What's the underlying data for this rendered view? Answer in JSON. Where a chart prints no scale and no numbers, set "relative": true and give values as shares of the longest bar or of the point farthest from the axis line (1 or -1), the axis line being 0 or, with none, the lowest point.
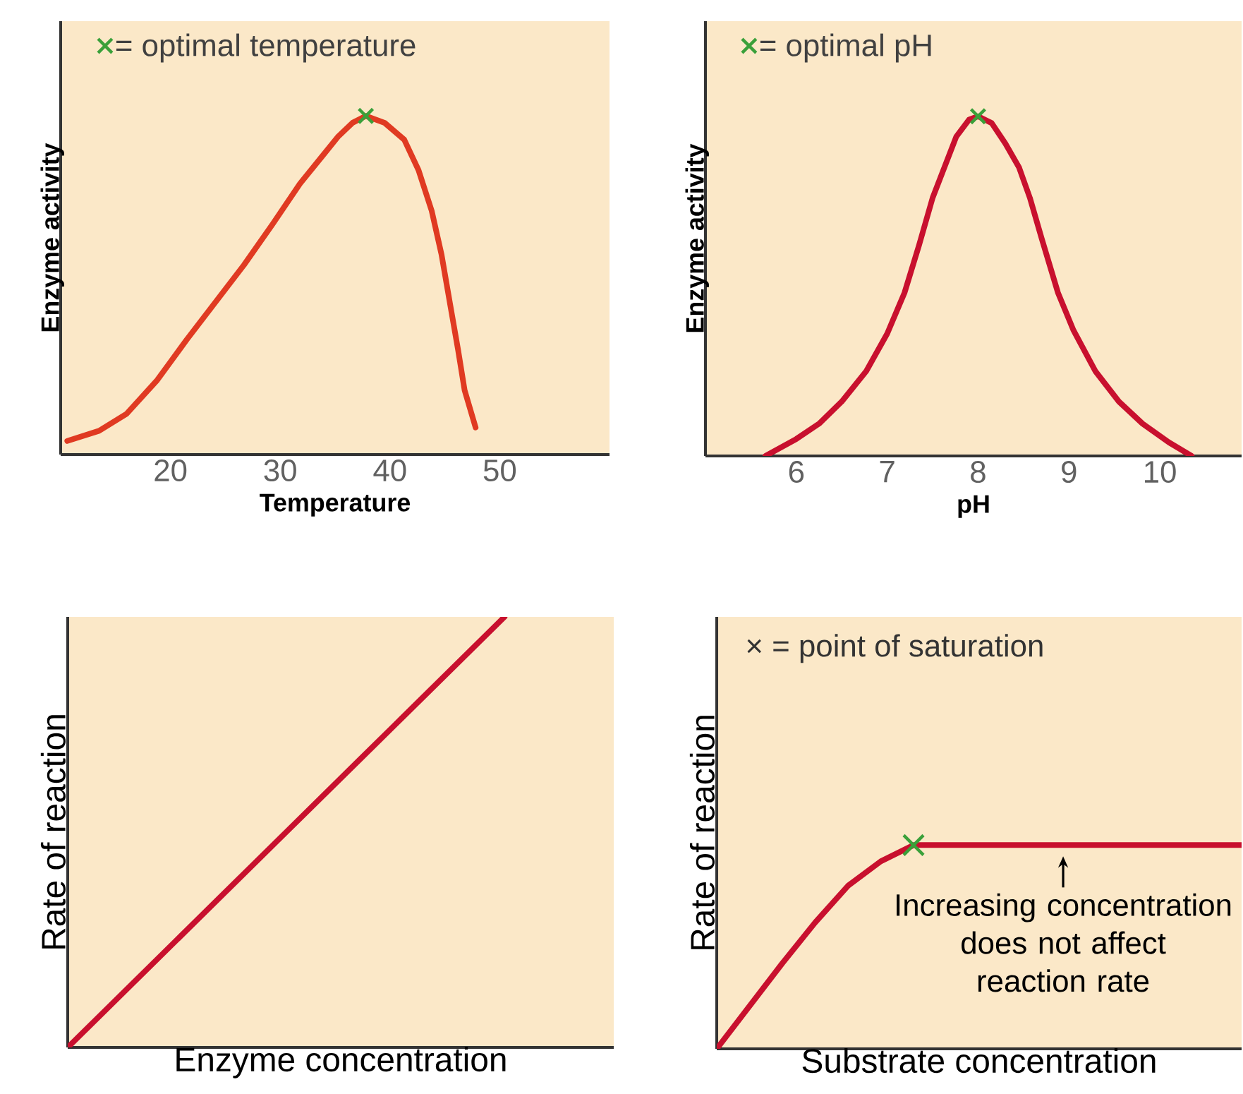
{
  "chart_data": [
    {
      "type": "line",
      "xlabel": "Temperature",
      "ylabel": "Enzyme activity",
      "relative": true,
      "xlim": [
        10,
        60
      ],
      "xticks": [
        20,
        30,
        40,
        50
      ],
      "tick_labels": "x",
      "legend": "top left",
      "series": [
        {
          "color": "#e03a22",
          "x": [
            10.6,
            13.5,
            16.0,
            18.8,
            21.5,
            24.1,
            26.7,
            29.3,
            31.8,
            33.8,
            35.3,
            36.6,
            37.8,
            39.5,
            41.3,
            42.6,
            43.8,
            44.7,
            45.5,
            46.2,
            46.8,
            47.8
          ],
          "values": [
            0.04,
            0.07,
            0.12,
            0.22,
            0.34,
            0.45,
            0.56,
            0.68,
            0.8,
            0.88,
            0.94,
            0.98,
            1,
            0.98,
            0.93,
            0.84,
            0.72,
            0.59,
            0.44,
            0.31,
            0.19,
            0.08
          ]
        },
        {
          "type": "scatter",
          "name": "= optimal temperature",
          "color": "#3aa03a",
          "marker": "cross",
          "x": [
            37.8
          ],
          "values": [
            1
          ]
        }
      ]
    },
    {
      "type": "line",
      "xlabel": "pH",
      "ylabel": "Enzyme activity",
      "relative": true,
      "xlim": [
        5,
        10.9
      ],
      "xticks": [
        6,
        7,
        8,
        9,
        10
      ],
      "tick_labels": "x",
      "legend": "top left",
      "series": [
        {
          "color": "#c8102e",
          "x": [
            5.66,
            6.0,
            6.25,
            6.5,
            6.77,
            7.0,
            7.19,
            7.35,
            7.5,
            7.76,
            7.9,
            8,
            8.15,
            8.3,
            8.45,
            8.57,
            8.7,
            8.88,
            9.05,
            9.29,
            9.55,
            9.81,
            10.1,
            10.35
          ],
          "values": [
            0,
            0.05,
            0.095,
            0.16,
            0.25,
            0.36,
            0.48,
            0.62,
            0.76,
            0.94,
            0.99,
            1,
            0.98,
            0.92,
            0.85,
            0.76,
            0.64,
            0.48,
            0.37,
            0.25,
            0.16,
            0.095,
            0.04,
            0
          ]
        },
        {
          "type": "scatter",
          "name": "= optimal pH",
          "color": "#3aa03a",
          "marker": "cross",
          "x": [
            8
          ],
          "values": [
            1
          ]
        }
      ]
    },
    {
      "type": "line",
      "xlabel": "Enzyme concentration",
      "ylabel": "Rate of reaction",
      "relative": true,
      "tick_labels": false,
      "categories": [
        null,
        null,
        null,
        null,
        null,
        null
      ],
      "series": [
        {
          "color": "#c8102e",
          "values": [
            0,
            0.25,
            0.5,
            0.75,
            1,
            null
          ]
        }
      ]
    },
    {
      "type": "line",
      "xlabel": "Substrate concentration",
      "ylabel": "Rate of reaction",
      "relative": true,
      "tick_labels": false,
      "categories": [
        null,
        null,
        null,
        null,
        null,
        null,
        null,
        null,
        null,
        null,
        null,
        null,
        null,
        null,
        null,
        null,
        null
      ],
      "annotations": [
        "× = point of saturation",
        {
          "text": "Increasing concentration does not affect reaction rate",
          "y": 1
        }
      ],
      "series": [
        {
          "color": "#c8102e",
          "values": [
            0,
            0.21,
            0.42,
            0.62,
            0.8,
            0.92,
            1,
            1,
            1,
            1,
            1,
            1,
            1,
            1,
            1,
            1,
            1
          ]
        }
      ]
    }
  ]
}
